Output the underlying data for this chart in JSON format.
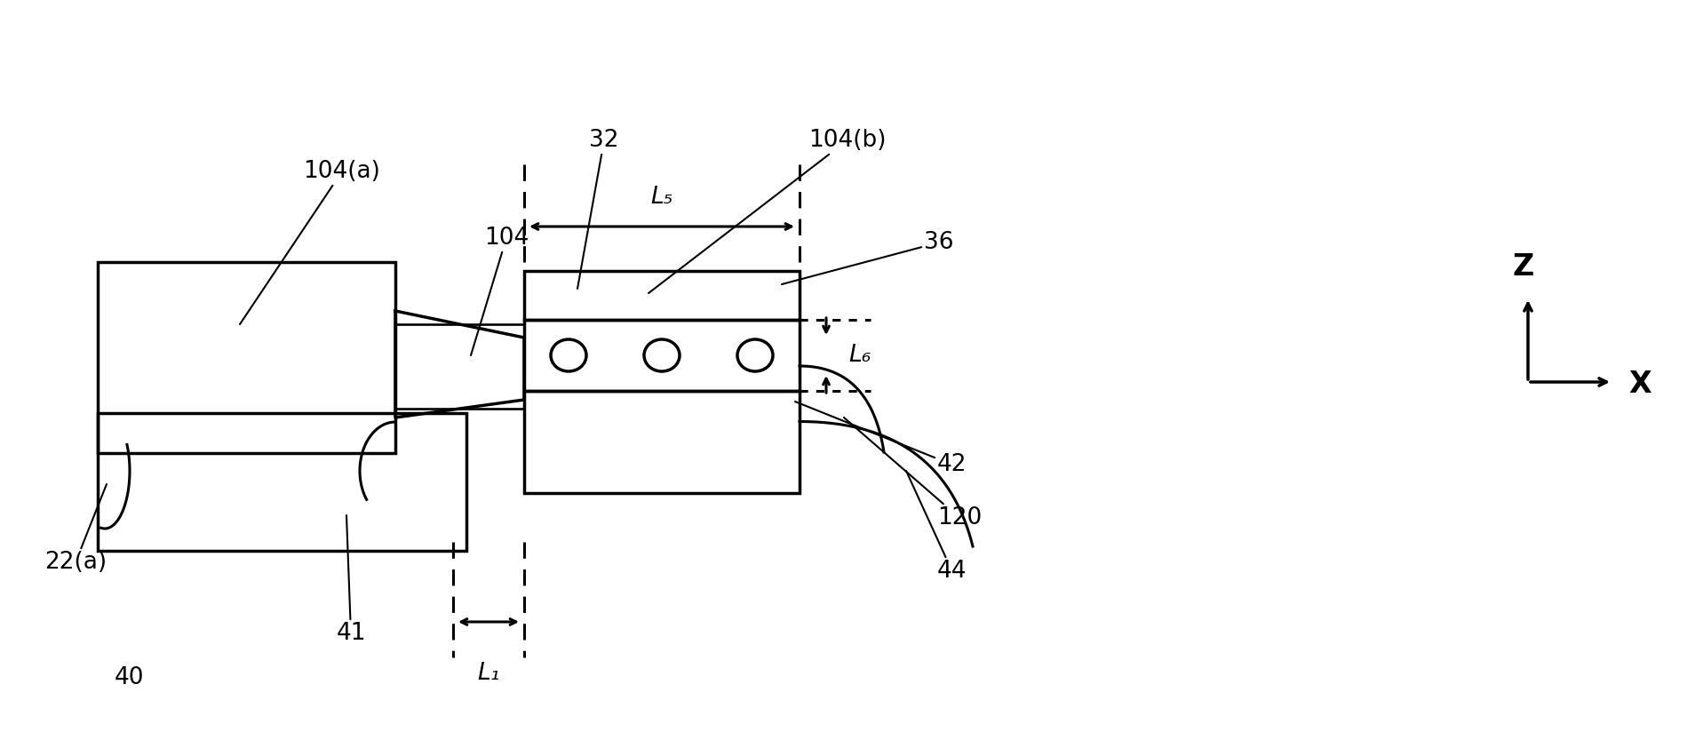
{
  "bg_color": "#ffffff",
  "line_color": "#000000",
  "fig_width": 19.17,
  "fig_height": 8.51,
  "dpi": 100,
  "labels": {
    "104a": "104(a)",
    "104b": "104(b)",
    "104": "104",
    "32": "32",
    "36": "36",
    "22a": "22(a)",
    "40": "40",
    "41": "41",
    "42": "42",
    "44": "44",
    "120": "120",
    "L1": "L₁",
    "L5": "L₅",
    "L6": "L₆",
    "Z": "Z",
    "X": "X"
  }
}
